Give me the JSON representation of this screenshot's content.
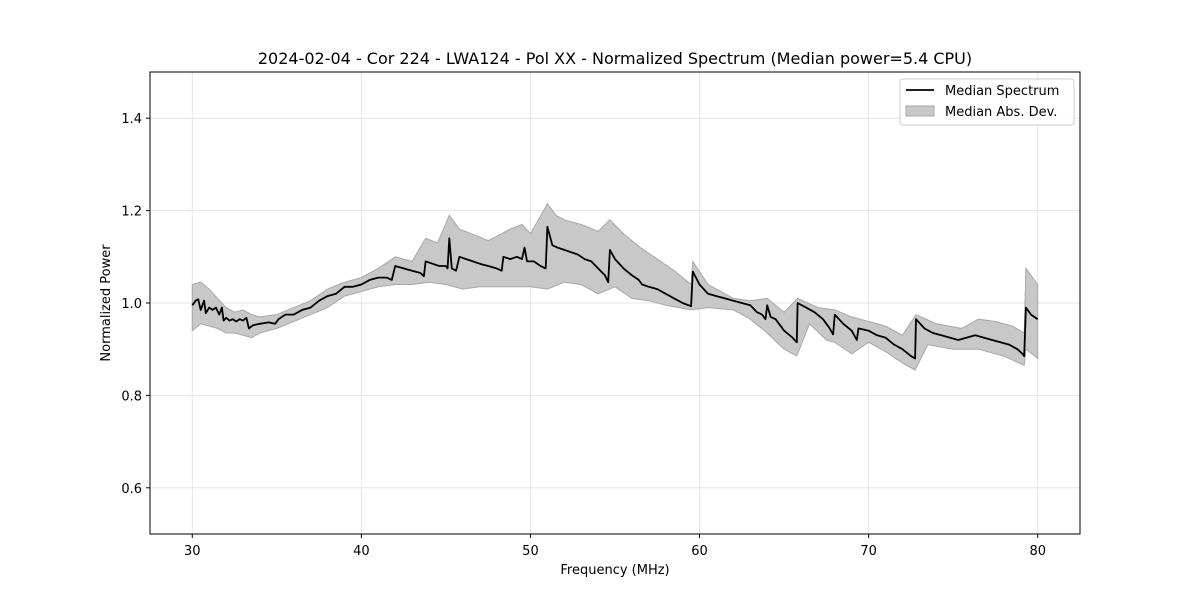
{
  "chart_data": {
    "type": "line",
    "title": "2024-02-04 - Cor 224 - LWA124 - Pol XX - Normalized Spectrum (Median power=5.4 CPU)",
    "xlabel": "Frequency (MHz)",
    "ylabel": "Normalized Power",
    "xlim": [
      27.5,
      82.5
    ],
    "ylim": [
      0.5,
      1.5
    ],
    "xticks": [
      30,
      40,
      50,
      60,
      70,
      80
    ],
    "yticks": [
      0.6,
      0.8,
      1.0,
      1.2,
      1.4
    ],
    "grid": true,
    "legend_position": "top-right",
    "legend": [
      "Median Spectrum",
      "Median Abs. Dev."
    ],
    "colors": {
      "line": "#000000",
      "band_fill": "#c8c8c8",
      "band_edge": "#a8a8a8",
      "grid": "#e6e6e6"
    },
    "series": [
      {
        "name": "Median Spectrum",
        "points": [
          [
            30.0,
            0.995
          ],
          [
            30.2,
            1.005
          ],
          [
            30.35,
            1.008
          ],
          [
            30.5,
            0.985
          ],
          [
            30.7,
            1.005
          ],
          [
            30.8,
            0.978
          ],
          [
            31.0,
            0.99
          ],
          [
            31.2,
            0.985
          ],
          [
            31.4,
            0.99
          ],
          [
            31.6,
            0.975
          ],
          [
            31.75,
            0.99
          ],
          [
            31.85,
            0.962
          ],
          [
            32.0,
            0.968
          ],
          [
            32.2,
            0.962
          ],
          [
            32.4,
            0.965
          ],
          [
            32.6,
            0.96
          ],
          [
            32.8,
            0.965
          ],
          [
            33.0,
            0.962
          ],
          [
            33.2,
            0.968
          ],
          [
            33.35,
            0.945
          ],
          [
            33.6,
            0.952
          ],
          [
            34.0,
            0.955
          ],
          [
            34.5,
            0.958
          ],
          [
            34.9,
            0.955
          ],
          [
            35.1,
            0.965
          ],
          [
            35.5,
            0.975
          ],
          [
            36.0,
            0.975
          ],
          [
            36.5,
            0.985
          ],
          [
            37.0,
            0.99
          ],
          [
            37.5,
            1.005
          ],
          [
            38.0,
            1.015
          ],
          [
            38.5,
            1.02
          ],
          [
            39.0,
            1.035
          ],
          [
            39.5,
            1.035
          ],
          [
            40.0,
            1.04
          ],
          [
            40.5,
            1.05
          ],
          [
            41.0,
            1.055
          ],
          [
            41.5,
            1.055
          ],
          [
            41.8,
            1.05
          ],
          [
            42.0,
            1.08
          ],
          [
            42.5,
            1.075
          ],
          [
            43.0,
            1.07
          ],
          [
            43.5,
            1.065
          ],
          [
            43.7,
            1.058
          ],
          [
            43.8,
            1.09
          ],
          [
            44.2,
            1.085
          ],
          [
            44.6,
            1.08
          ],
          [
            45.0,
            1.08
          ],
          [
            45.1,
            1.075
          ],
          [
            45.2,
            1.14
          ],
          [
            45.35,
            1.075
          ],
          [
            45.6,
            1.07
          ],
          [
            45.8,
            1.1
          ],
          [
            46.2,
            1.095
          ],
          [
            46.6,
            1.09
          ],
          [
            47.0,
            1.085
          ],
          [
            47.5,
            1.08
          ],
          [
            48.0,
            1.075
          ],
          [
            48.3,
            1.07
          ],
          [
            48.4,
            1.1
          ],
          [
            48.8,
            1.095
          ],
          [
            49.2,
            1.1
          ],
          [
            49.5,
            1.095
          ],
          [
            49.65,
            1.12
          ],
          [
            49.8,
            1.09
          ],
          [
            50.2,
            1.09
          ],
          [
            50.6,
            1.08
          ],
          [
            50.9,
            1.075
          ],
          [
            51.0,
            1.165
          ],
          [
            51.3,
            1.125
          ],
          [
            51.6,
            1.12
          ],
          [
            52.0,
            1.115
          ],
          [
            52.4,
            1.11
          ],
          [
            52.8,
            1.105
          ],
          [
            53.2,
            1.095
          ],
          [
            53.6,
            1.09
          ],
          [
            54.0,
            1.075
          ],
          [
            54.4,
            1.06
          ],
          [
            54.6,
            1.045
          ],
          [
            54.7,
            1.115
          ],
          [
            55.0,
            1.095
          ],
          [
            55.5,
            1.075
          ],
          [
            56.0,
            1.06
          ],
          [
            56.4,
            1.05
          ],
          [
            56.6,
            1.04
          ],
          [
            57.0,
            1.035
          ],
          [
            57.5,
            1.03
          ],
          [
            58.0,
            1.02
          ],
          [
            58.5,
            1.01
          ],
          [
            59.0,
            1.0
          ],
          [
            59.5,
            0.993
          ],
          [
            59.6,
            1.068
          ],
          [
            60.0,
            1.04
          ],
          [
            60.5,
            1.02
          ],
          [
            61.0,
            1.015
          ],
          [
            61.5,
            1.01
          ],
          [
            62.0,
            1.005
          ],
          [
            62.5,
            1.0
          ],
          [
            63.0,
            0.995
          ],
          [
            63.4,
            0.98
          ],
          [
            63.7,
            0.975
          ],
          [
            63.9,
            0.965
          ],
          [
            64.0,
            0.995
          ],
          [
            64.2,
            0.97
          ],
          [
            64.5,
            0.965
          ],
          [
            65.0,
            0.94
          ],
          [
            65.5,
            0.925
          ],
          [
            65.75,
            0.915
          ],
          [
            65.8,
            1.0
          ],
          [
            66.3,
            0.99
          ],
          [
            66.8,
            0.98
          ],
          [
            67.3,
            0.965
          ],
          [
            67.7,
            0.945
          ],
          [
            67.9,
            0.932
          ],
          [
            68.0,
            0.975
          ],
          [
            68.5,
            0.955
          ],
          [
            69.0,
            0.94
          ],
          [
            69.3,
            0.92
          ],
          [
            69.4,
            0.945
          ],
          [
            70.0,
            0.94
          ],
          [
            70.5,
            0.93
          ],
          [
            71.0,
            0.925
          ],
          [
            71.5,
            0.91
          ],
          [
            72.0,
            0.9
          ],
          [
            72.5,
            0.885
          ],
          [
            72.75,
            0.88
          ],
          [
            72.8,
            0.965
          ],
          [
            73.3,
            0.945
          ],
          [
            73.8,
            0.935
          ],
          [
            74.3,
            0.93
          ],
          [
            74.8,
            0.925
          ],
          [
            75.3,
            0.92
          ],
          [
            75.8,
            0.925
          ],
          [
            76.3,
            0.93
          ],
          [
            76.8,
            0.925
          ],
          [
            77.3,
            0.92
          ],
          [
            77.8,
            0.915
          ],
          [
            78.3,
            0.91
          ],
          [
            78.8,
            0.9
          ],
          [
            79.1,
            0.89
          ],
          [
            79.2,
            0.885
          ],
          [
            79.3,
            0.99
          ],
          [
            79.6,
            0.975
          ],
          [
            80.0,
            0.965
          ]
        ]
      },
      {
        "name": "Median Abs. Dev.",
        "upper": [
          [
            30.0,
            1.04
          ],
          [
            30.5,
            1.045
          ],
          [
            31.0,
            1.03
          ],
          [
            31.5,
            1.01
          ],
          [
            32.0,
            0.99
          ],
          [
            32.5,
            0.98
          ],
          [
            33.0,
            0.985
          ],
          [
            33.5,
            0.975
          ],
          [
            34.0,
            0.97
          ],
          [
            35.0,
            0.975
          ],
          [
            36.0,
            0.99
          ],
          [
            37.0,
            1.005
          ],
          [
            38.0,
            1.03
          ],
          [
            39.0,
            1.045
          ],
          [
            40.0,
            1.055
          ],
          [
            41.0,
            1.075
          ],
          [
            42.0,
            1.1
          ],
          [
            43.0,
            1.09
          ],
          [
            43.8,
            1.14
          ],
          [
            44.5,
            1.13
          ],
          [
            45.2,
            1.19
          ],
          [
            45.8,
            1.16
          ],
          [
            46.5,
            1.15
          ],
          [
            47.5,
            1.135
          ],
          [
            48.3,
            1.15
          ],
          [
            48.8,
            1.16
          ],
          [
            49.5,
            1.17
          ],
          [
            50.0,
            1.15
          ],
          [
            51.0,
            1.215
          ],
          [
            51.5,
            1.19
          ],
          [
            52.0,
            1.18
          ],
          [
            53.0,
            1.17
          ],
          [
            54.0,
            1.155
          ],
          [
            54.7,
            1.18
          ],
          [
            55.5,
            1.15
          ],
          [
            56.5,
            1.12
          ],
          [
            57.5,
            1.095
          ],
          [
            58.5,
            1.07
          ],
          [
            59.5,
            1.04
          ],
          [
            59.6,
            1.09
          ],
          [
            60.5,
            1.04
          ],
          [
            62.0,
            1.01
          ],
          [
            63.0,
            1.005
          ],
          [
            64.0,
            1.01
          ],
          [
            65.0,
            0.98
          ],
          [
            65.8,
            1.01
          ],
          [
            67.0,
            0.99
          ],
          [
            68.0,
            0.985
          ],
          [
            69.0,
            0.97
          ],
          [
            70.0,
            0.96
          ],
          [
            71.0,
            0.95
          ],
          [
            72.0,
            0.93
          ],
          [
            72.8,
            0.975
          ],
          [
            74.0,
            0.955
          ],
          [
            75.5,
            0.945
          ],
          [
            76.5,
            0.965
          ],
          [
            77.5,
            0.96
          ],
          [
            78.5,
            0.95
          ],
          [
            79.2,
            0.935
          ],
          [
            79.3,
            1.075
          ],
          [
            80.0,
            1.04
          ]
        ],
        "lower": [
          [
            30.0,
            0.94
          ],
          [
            30.5,
            0.955
          ],
          [
            31.0,
            0.95
          ],
          [
            31.5,
            0.945
          ],
          [
            32.0,
            0.935
          ],
          [
            32.5,
            0.935
          ],
          [
            33.0,
            0.93
          ],
          [
            33.5,
            0.925
          ],
          [
            34.0,
            0.935
          ],
          [
            35.0,
            0.945
          ],
          [
            36.0,
            0.96
          ],
          [
            37.0,
            0.975
          ],
          [
            38.0,
            0.99
          ],
          [
            39.0,
            1.015
          ],
          [
            40.0,
            1.025
          ],
          [
            41.0,
            1.035
          ],
          [
            42.0,
            1.04
          ],
          [
            43.0,
            1.04
          ],
          [
            44.0,
            1.045
          ],
          [
            45.0,
            1.04
          ],
          [
            46.0,
            1.03
          ],
          [
            47.0,
            1.035
          ],
          [
            48.0,
            1.035
          ],
          [
            49.0,
            1.035
          ],
          [
            50.0,
            1.035
          ],
          [
            51.0,
            1.03
          ],
          [
            52.0,
            1.045
          ],
          [
            53.0,
            1.04
          ],
          [
            54.0,
            1.02
          ],
          [
            55.0,
            1.035
          ],
          [
            56.0,
            1.01
          ],
          [
            57.0,
            1.005
          ],
          [
            58.0,
            0.995
          ],
          [
            59.5,
            0.985
          ],
          [
            60.5,
            0.99
          ],
          [
            62.0,
            0.985
          ],
          [
            63.0,
            0.965
          ],
          [
            64.0,
            0.935
          ],
          [
            65.0,
            0.9
          ],
          [
            65.75,
            0.885
          ],
          [
            66.5,
            0.955
          ],
          [
            67.5,
            0.92
          ],
          [
            68.0,
            0.915
          ],
          [
            69.0,
            0.89
          ],
          [
            70.0,
            0.915
          ],
          [
            71.0,
            0.895
          ],
          [
            72.0,
            0.87
          ],
          [
            72.75,
            0.855
          ],
          [
            73.5,
            0.91
          ],
          [
            75.0,
            0.9
          ],
          [
            76.5,
            0.9
          ],
          [
            78.0,
            0.885
          ],
          [
            79.2,
            0.865
          ],
          [
            79.3,
            0.9
          ],
          [
            80.0,
            0.88
          ]
        ]
      }
    ]
  }
}
